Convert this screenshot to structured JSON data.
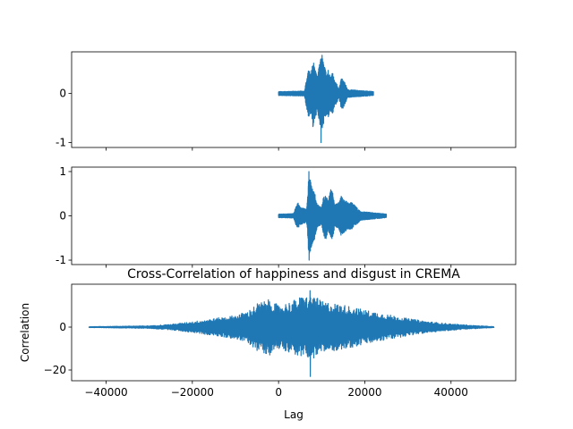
{
  "colors": {
    "series": "#1f77b4",
    "axes": "#000000",
    "background": "#ffffff"
  },
  "chart_data": [
    {
      "type": "line",
      "series": [
        {
          "x_start": 0,
          "x_end": 22000,
          "envelope": [
            [
              0,
              0.04
            ],
            [
              6000,
              0.05
            ],
            [
              6500,
              0.3
            ],
            [
              7000,
              0.5
            ],
            [
              7500,
              0.4
            ],
            [
              8000,
              0.7
            ],
            [
              8500,
              0.5
            ],
            [
              9000,
              0.35
            ],
            [
              9500,
              0.6
            ],
            [
              10000,
              0.8
            ],
            [
              10500,
              0.6
            ],
            [
              11000,
              0.45
            ],
            [
              11500,
              0.5
            ],
            [
              12000,
              0.35
            ],
            [
              12500,
              0.45
            ],
            [
              13000,
              0.25
            ],
            [
              13500,
              0.2
            ],
            [
              14000,
              0.08
            ],
            [
              14500,
              0.3
            ],
            [
              15000,
              0.3
            ],
            [
              15500,
              0.2
            ],
            [
              16000,
              0.08
            ],
            [
              22000,
              0.04
            ]
          ],
          "max": 0.78,
          "min": -1.0
        }
      ],
      "xlim": [
        -48000,
        55000
      ],
      "ylim": [
        -1.1,
        0.85
      ],
      "yticks": [
        -1,
        0
      ],
      "xticks": [
        -40000,
        -20000,
        0,
        20000,
        40000
      ],
      "show_xticklabels": false,
      "grid": false
    },
    {
      "type": "line",
      "series": [
        {
          "x_start": 0,
          "x_end": 25000,
          "envelope": [
            [
              0,
              0.04
            ],
            [
              3500,
              0.05
            ],
            [
              4000,
              0.2
            ],
            [
              4500,
              0.3
            ],
            [
              5000,
              0.2
            ],
            [
              6500,
              0.15
            ],
            [
              7000,
              0.9
            ],
            [
              7500,
              0.8
            ],
            [
              8000,
              0.6
            ],
            [
              8500,
              0.5
            ],
            [
              9000,
              0.25
            ],
            [
              10000,
              0.2
            ],
            [
              10500,
              0.5
            ],
            [
              11000,
              0.55
            ],
            [
              11500,
              0.3
            ],
            [
              12000,
              0.6
            ],
            [
              12500,
              0.55
            ],
            [
              13000,
              0.25
            ],
            [
              14000,
              0.3
            ],
            [
              14500,
              0.45
            ],
            [
              15000,
              0.4
            ],
            [
              16000,
              0.3
            ],
            [
              17000,
              0.3
            ],
            [
              18000,
              0.2
            ],
            [
              19000,
              0.1
            ],
            [
              25000,
              0.04
            ]
          ],
          "max": 1.0,
          "min": -1.0
        }
      ],
      "xlim": [
        -48000,
        55000
      ],
      "ylim": [
        -1.1,
        1.1
      ],
      "yticks": [
        -1,
        0,
        1
      ],
      "xticks": [
        -40000,
        -20000,
        0,
        20000,
        40000
      ],
      "show_xticklabels": false,
      "grid": false
    },
    {
      "type": "line",
      "title": "Cross-Correlation of happiness and disgust in CREMA",
      "xlabel": "Lag",
      "ylabel": "Correlation",
      "series": [
        {
          "x_start": -44000,
          "x_end": 50000,
          "envelope": [
            [
              -44000,
              0.2
            ],
            [
              -30000,
              0.6
            ],
            [
              -25000,
              1.3
            ],
            [
              -20000,
              2.5
            ],
            [
              -15000,
              4.0
            ],
            [
              -10000,
              5.5
            ],
            [
              -7000,
              7.5
            ],
            [
              -5000,
              11
            ],
            [
              -2000,
              13
            ],
            [
              0,
              10
            ],
            [
              3000,
              12
            ],
            [
              5000,
              14
            ],
            [
              8000,
              15
            ],
            [
              10000,
              12
            ],
            [
              13000,
              11
            ],
            [
              16000,
              10
            ],
            [
              20000,
              8
            ],
            [
              25000,
              6
            ],
            [
              30000,
              4
            ],
            [
              35000,
              2.5
            ],
            [
              40000,
              1.5
            ],
            [
              45000,
              0.8
            ],
            [
              50000,
              0.2
            ]
          ],
          "max": 17,
          "min": -23
        }
      ],
      "xlim": [
        -48000,
        55000
      ],
      "ylim": [
        -25,
        20
      ],
      "yticks": [
        -20,
        0
      ],
      "xticks": [
        -40000,
        -20000,
        0,
        20000,
        40000
      ],
      "xticklabels": [
        "−40000",
        "−20000",
        "0",
        "20000",
        "40000"
      ],
      "yticklabels": [
        "−20",
        "0"
      ],
      "show_xticklabels": true,
      "grid": false
    }
  ]
}
